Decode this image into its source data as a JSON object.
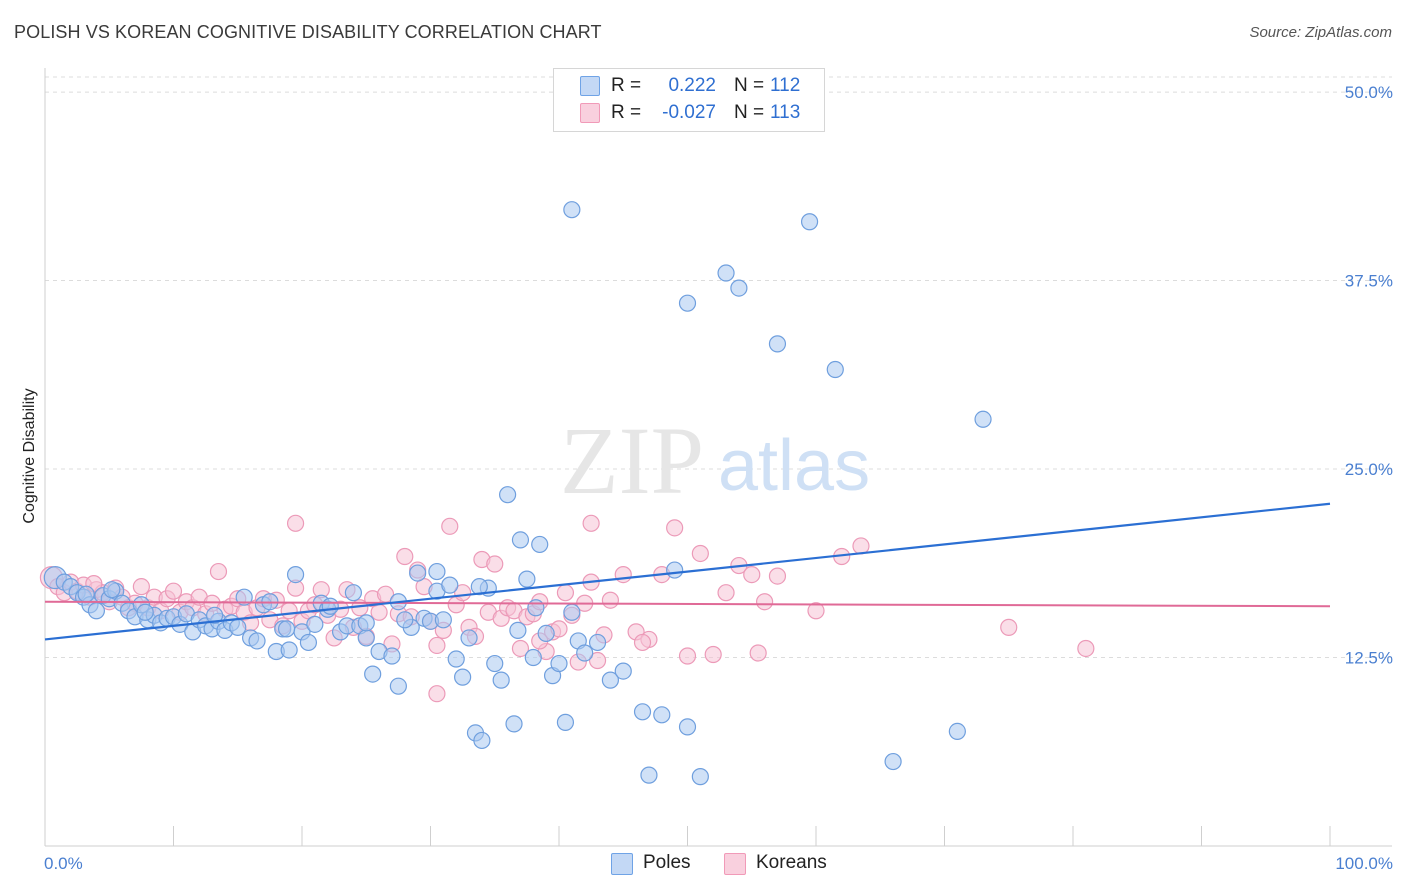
{
  "header": {
    "title": "POLISH VS KOREAN COGNITIVE DISABILITY CORRELATION CHART",
    "source": "Source: ZipAtlas.com"
  },
  "watermark": {
    "zip": "ZIP",
    "atlas": "atlas"
  },
  "legend": {
    "rows": [
      {
        "r_label": "R =",
        "r_value": "0.222",
        "n_label": "N =",
        "n_value": "112",
        "color": "#6fa3e6"
      },
      {
        "r_label": "R =",
        "r_value": "-0.027",
        "n_label": "N =",
        "n_value": "113",
        "color": "#f19ab8"
      }
    ]
  },
  "bottom_legend": [
    {
      "label": "Poles",
      "color": "#6fa3e6"
    },
    {
      "label": "Koreans",
      "color": "#f19ab8"
    }
  ],
  "colors": {
    "poles_fill": "#a9c8f0",
    "poles_stroke": "#6f9fde",
    "poles_line": "#2b6fd3",
    "koreans_fill": "#f6c3d5",
    "koreans_stroke": "#ec9ab8",
    "koreans_line": "#e06a97",
    "grid": "#dcdcdc",
    "tick_label": "#4a7fd0"
  },
  "chart_data": {
    "type": "scatter",
    "title": "POLISH VS KOREAN COGNITIVE DISABILITY CORRELATION CHART",
    "xlabel": "",
    "ylabel": "Cognitive Disability",
    "xlim": [
      0,
      100
    ],
    "ylim": [
      0,
      51
    ],
    "x_tick_labels": [
      "0.0%",
      "100.0%"
    ],
    "y_ticks": [
      12.5,
      25.0,
      37.5,
      50.0
    ],
    "y_tick_labels": [
      "12.5%",
      "25.0%",
      "37.5%",
      "50.0%"
    ],
    "grid": true,
    "legend_position": "top-center",
    "series": [
      {
        "name": "Poles",
        "r": 0.222,
        "n": 112,
        "trend": {
          "x": [
            0,
            100
          ],
          "y": [
            13.7,
            22.7
          ]
        },
        "points": [
          [
            0.8,
            17.8
          ],
          [
            1.5,
            17.5
          ],
          [
            2.0,
            17.2
          ],
          [
            2.5,
            16.8
          ],
          [
            3.0,
            16.5
          ],
          [
            3.5,
            16.0
          ],
          [
            4.0,
            15.6
          ],
          [
            4.5,
            16.6
          ],
          [
            5.0,
            16.4
          ],
          [
            5.5,
            16.9
          ],
          [
            6.0,
            16.1
          ],
          [
            6.5,
            15.6
          ],
          [
            7.0,
            15.2
          ],
          [
            7.5,
            16.0
          ],
          [
            8.0,
            15.0
          ],
          [
            8.5,
            15.3
          ],
          [
            9.0,
            14.8
          ],
          [
            9.5,
            15.1
          ],
          [
            10.0,
            15.2
          ],
          [
            10.5,
            14.7
          ],
          [
            11.0,
            15.4
          ],
          [
            11.5,
            14.2
          ],
          [
            12.0,
            15.0
          ],
          [
            12.5,
            14.6
          ],
          [
            13.0,
            14.4
          ],
          [
            13.5,
            14.9
          ],
          [
            14.0,
            14.3
          ],
          [
            14.5,
            14.8
          ],
          [
            15.0,
            14.5
          ],
          [
            15.5,
            16.5
          ],
          [
            16.0,
            13.8
          ],
          [
            16.5,
            13.6
          ],
          [
            17.0,
            16.0
          ],
          [
            17.5,
            16.2
          ],
          [
            18.0,
            12.9
          ],
          [
            18.5,
            14.4
          ],
          [
            19.0,
            13.0
          ],
          [
            19.5,
            18.0
          ],
          [
            20.0,
            14.2
          ],
          [
            20.5,
            13.5
          ],
          [
            21.0,
            14.7
          ],
          [
            21.5,
            16.1
          ],
          [
            22.0,
            15.7
          ],
          [
            23.0,
            14.2
          ],
          [
            23.5,
            14.6
          ],
          [
            24.0,
            16.8
          ],
          [
            24.5,
            14.6
          ],
          [
            25.0,
            13.8
          ],
          [
            25.5,
            11.4
          ],
          [
            26.0,
            12.9
          ],
          [
            27.0,
            12.6
          ],
          [
            27.5,
            10.6
          ],
          [
            28.5,
            14.5
          ],
          [
            29.0,
            18.1
          ],
          [
            29.5,
            15.1
          ],
          [
            30.0,
            14.9
          ],
          [
            30.5,
            16.9
          ],
          [
            31.0,
            15.0
          ],
          [
            31.5,
            17.3
          ],
          [
            32.0,
            12.4
          ],
          [
            32.5,
            11.2
          ],
          [
            33.0,
            13.8
          ],
          [
            33.5,
            7.5
          ],
          [
            34.0,
            7.0
          ],
          [
            34.5,
            17.1
          ],
          [
            35.0,
            12.1
          ],
          [
            35.5,
            11.0
          ],
          [
            36.0,
            23.3
          ],
          [
            36.5,
            8.1
          ],
          [
            37.0,
            20.3
          ],
          [
            37.5,
            17.7
          ],
          [
            38.0,
            12.5
          ],
          [
            38.5,
            20.0
          ],
          [
            39.0,
            14.1
          ],
          [
            39.5,
            11.3
          ],
          [
            40.0,
            12.1
          ],
          [
            40.5,
            8.2
          ],
          [
            41.0,
            15.5
          ],
          [
            41.5,
            13.6
          ],
          [
            42.0,
            12.8
          ],
          [
            43.0,
            13.5
          ],
          [
            44.0,
            11.0
          ],
          [
            45.0,
            11.6
          ],
          [
            46.5,
            8.9
          ],
          [
            47.0,
            4.7
          ],
          [
            48.0,
            8.7
          ],
          [
            49.0,
            18.3
          ],
          [
            50.0,
            7.9
          ],
          [
            51.0,
            4.6
          ],
          [
            41.0,
            42.2
          ],
          [
            50.0,
            36.0
          ],
          [
            53.0,
            38.0
          ],
          [
            54.0,
            37.0
          ],
          [
            57.0,
            33.3
          ],
          [
            59.5,
            41.4
          ],
          [
            61.5,
            31.6
          ],
          [
            66.0,
            5.6
          ],
          [
            71.0,
            7.6
          ],
          [
            73.0,
            28.3
          ],
          [
            36.8,
            14.3
          ],
          [
            25.0,
            14.8
          ],
          [
            27.5,
            16.2
          ],
          [
            30.5,
            18.2
          ],
          [
            3.2,
            16.7
          ],
          [
            5.2,
            17.0
          ],
          [
            7.8,
            15.5
          ],
          [
            13.2,
            15.3
          ],
          [
            18.8,
            14.4
          ],
          [
            22.2,
            15.9
          ],
          [
            28.0,
            15.0
          ],
          [
            33.8,
            17.2
          ],
          [
            38.2,
            15.8
          ]
        ]
      },
      {
        "name": "Koreans",
        "r": -0.027,
        "n": 113,
        "trend": {
          "x": [
            0,
            100
          ],
          "y": [
            16.2,
            15.9
          ]
        },
        "points": [
          [
            0.5,
            17.8
          ],
          [
            1.0,
            17.2
          ],
          [
            1.5,
            16.8
          ],
          [
            2.0,
            17.5
          ],
          [
            2.5,
            16.9
          ],
          [
            3.0,
            17.3
          ],
          [
            3.5,
            16.5
          ],
          [
            4.0,
            17.0
          ],
          [
            4.5,
            16.8
          ],
          [
            5.0,
            16.2
          ],
          [
            5.5,
            17.1
          ],
          [
            6.0,
            16.5
          ],
          [
            6.5,
            15.8
          ],
          [
            7.0,
            16.1
          ],
          [
            7.5,
            17.2
          ],
          [
            8.0,
            15.8
          ],
          [
            8.5,
            16.5
          ],
          [
            9.0,
            15.6
          ],
          [
            9.5,
            16.4
          ],
          [
            10.0,
            16.9
          ],
          [
            10.5,
            15.5
          ],
          [
            11.0,
            16.2
          ],
          [
            11.5,
            15.8
          ],
          [
            12.0,
            16.5
          ],
          [
            12.5,
            15.4
          ],
          [
            13.0,
            16.1
          ],
          [
            13.5,
            18.2
          ],
          [
            14.0,
            15.7
          ],
          [
            14.5,
            15.9
          ],
          [
            15.0,
            16.4
          ],
          [
            15.5,
            15.5
          ],
          [
            16.0,
            14.8
          ],
          [
            16.5,
            15.8
          ],
          [
            17.0,
            16.4
          ],
          [
            17.5,
            15.0
          ],
          [
            18.0,
            16.3
          ],
          [
            18.5,
            14.6
          ],
          [
            19.0,
            15.6
          ],
          [
            19.5,
            17.1
          ],
          [
            20.0,
            14.9
          ],
          [
            20.5,
            15.6
          ],
          [
            21.0,
            16.0
          ],
          [
            21.5,
            17.0
          ],
          [
            22.0,
            15.3
          ],
          [
            22.5,
            13.8
          ],
          [
            23.0,
            15.7
          ],
          [
            23.5,
            17.0
          ],
          [
            24.0,
            14.5
          ],
          [
            24.5,
            15.8
          ],
          [
            25.0,
            13.9
          ],
          [
            25.5,
            16.4
          ],
          [
            26.0,
            15.5
          ],
          [
            26.5,
            16.7
          ],
          [
            27.0,
            13.4
          ],
          [
            27.5,
            15.4
          ],
          [
            28.0,
            19.2
          ],
          [
            28.5,
            15.2
          ],
          [
            29.0,
            18.3
          ],
          [
            29.5,
            17.2
          ],
          [
            30.0,
            14.9
          ],
          [
            30.5,
            13.3
          ],
          [
            31.0,
            14.3
          ],
          [
            31.5,
            21.2
          ],
          [
            32.0,
            16.0
          ],
          [
            32.5,
            16.8
          ],
          [
            33.0,
            14.5
          ],
          [
            33.5,
            13.9
          ],
          [
            34.0,
            19.0
          ],
          [
            34.5,
            15.5
          ],
          [
            35.0,
            18.7
          ],
          [
            35.5,
            15.1
          ],
          [
            36.0,
            15.8
          ],
          [
            36.5,
            15.6
          ],
          [
            37.0,
            13.1
          ],
          [
            37.5,
            15.2
          ],
          [
            38.0,
            15.4
          ],
          [
            38.5,
            16.2
          ],
          [
            39.0,
            12.9
          ],
          [
            39.5,
            14.2
          ],
          [
            40.0,
            14.4
          ],
          [
            40.5,
            16.8
          ],
          [
            41.0,
            15.3
          ],
          [
            41.5,
            12.2
          ],
          [
            42.0,
            16.1
          ],
          [
            42.5,
            17.5
          ],
          [
            43.0,
            12.3
          ],
          [
            43.5,
            14.0
          ],
          [
            44.0,
            16.3
          ],
          [
            45.0,
            18.0
          ],
          [
            46.0,
            14.2
          ],
          [
            47.0,
            13.7
          ],
          [
            48.0,
            18.0
          ],
          [
            49.0,
            21.1
          ],
          [
            50.0,
            12.6
          ],
          [
            51.0,
            19.4
          ],
          [
            52.0,
            12.7
          ],
          [
            53.0,
            16.8
          ],
          [
            54.0,
            18.6
          ],
          [
            55.0,
            18.0
          ],
          [
            56.0,
            16.2
          ],
          [
            57.0,
            17.9
          ],
          [
            60.0,
            15.6
          ],
          [
            62.0,
            19.2
          ],
          [
            63.5,
            19.9
          ],
          [
            75.0,
            14.5
          ],
          [
            81.0,
            13.1
          ],
          [
            30.5,
            10.1
          ],
          [
            38.5,
            13.6
          ],
          [
            42.5,
            21.4
          ],
          [
            46.5,
            13.5
          ],
          [
            55.5,
            12.8
          ],
          [
            19.5,
            21.4
          ],
          [
            3.8,
            17.4
          ]
        ]
      }
    ]
  }
}
